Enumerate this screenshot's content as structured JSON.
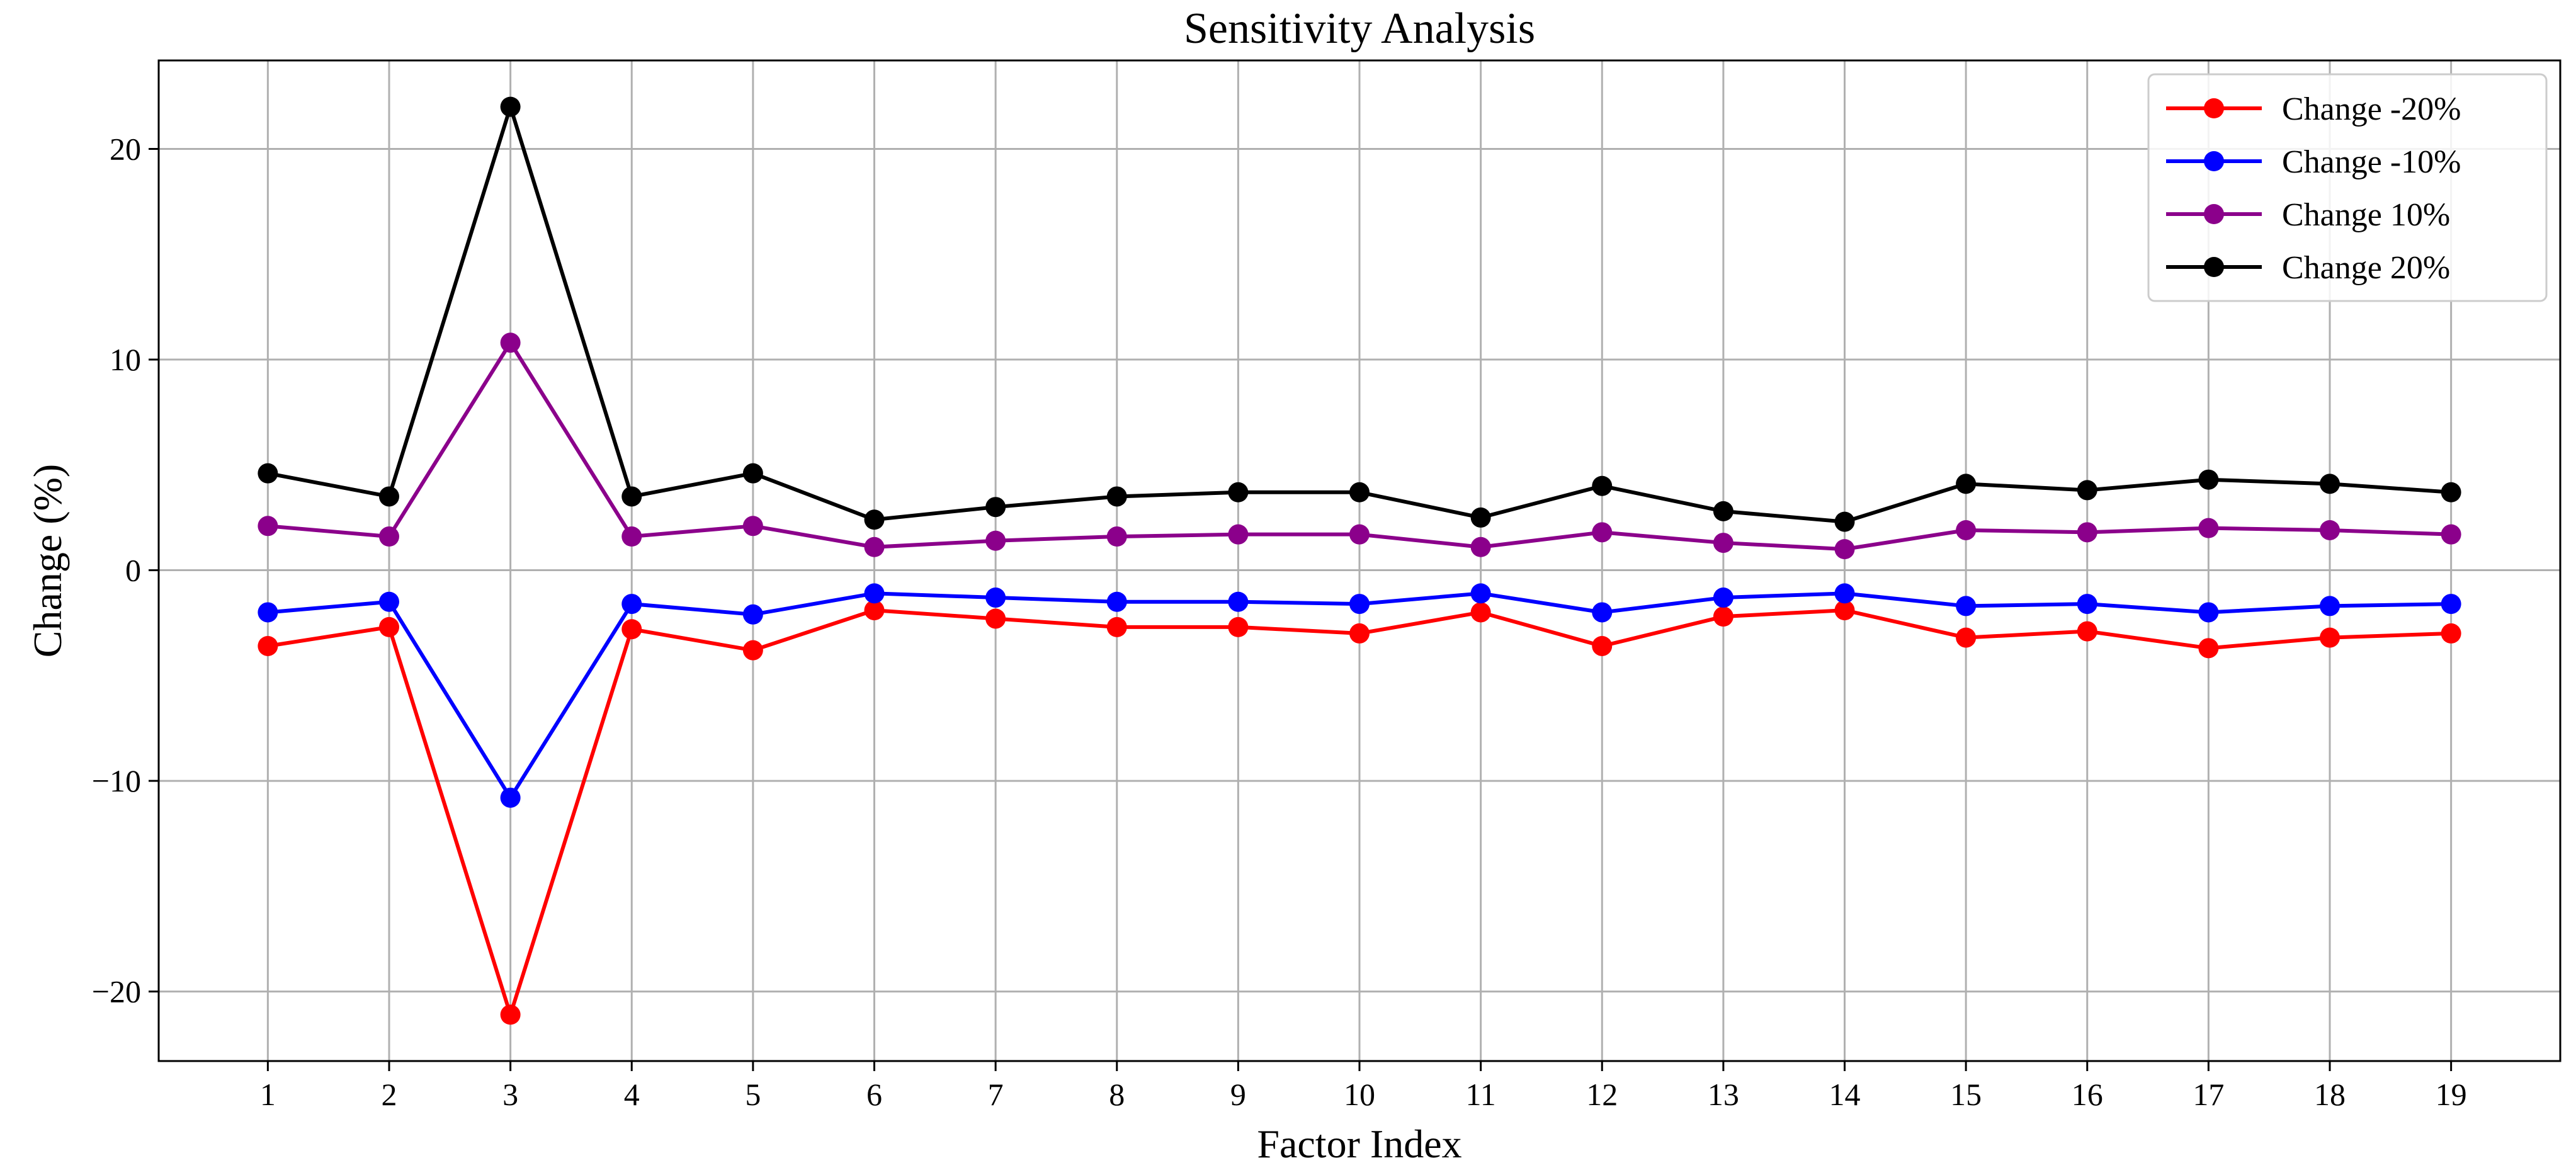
{
  "chart_data": {
    "type": "line",
    "title": "Sensitivity Analysis",
    "xlabel": "Factor Index",
    "ylabel": "Change (%)",
    "x": [
      1,
      2,
      3,
      4,
      5,
      6,
      7,
      8,
      9,
      10,
      11,
      12,
      13,
      14,
      15,
      16,
      17,
      18,
      19
    ],
    "xlim": [
      0.1,
      19.9
    ],
    "ylim": [
      -23.3,
      24.2
    ],
    "yticks": [
      -20,
      -10,
      0,
      10,
      20
    ],
    "ytick_labels": [
      "−20",
      "−10",
      "0",
      "10",
      "20"
    ],
    "grid": true,
    "legend_position": "top-right",
    "marker": "circle",
    "series": [
      {
        "name": "Change -20%",
        "color": "#ff0000",
        "values": [
          -3.6,
          -2.7,
          -21.1,
          -2.8,
          -3.8,
          -1.9,
          -2.3,
          -2.7,
          -2.7,
          -3.0,
          -2.0,
          -3.6,
          -2.2,
          -1.9,
          -3.2,
          -2.9,
          -3.7,
          -3.2,
          -3.0
        ]
      },
      {
        "name": "Change -10%",
        "color": "#0000ff",
        "values": [
          -2.0,
          -1.5,
          -10.8,
          -1.6,
          -2.1,
          -1.1,
          -1.3,
          -1.5,
          -1.5,
          -1.6,
          -1.1,
          -2.0,
          -1.3,
          -1.1,
          -1.7,
          -1.6,
          -2.0,
          -1.7,
          -1.6
        ]
      },
      {
        "name": "Change 10%",
        "color": "#8b008b",
        "values": [
          2.1,
          1.6,
          10.8,
          1.6,
          2.1,
          1.1,
          1.4,
          1.6,
          1.7,
          1.7,
          1.1,
          1.8,
          1.3,
          1.0,
          1.9,
          1.8,
          2.0,
          1.9,
          1.7
        ]
      },
      {
        "name": "Change 20%",
        "color": "#000000",
        "values": [
          4.6,
          3.5,
          22.0,
          3.5,
          4.6,
          2.4,
          3.0,
          3.5,
          3.7,
          3.7,
          2.5,
          4.0,
          2.8,
          2.3,
          4.1,
          3.8,
          4.3,
          4.1,
          3.7
        ]
      }
    ]
  }
}
